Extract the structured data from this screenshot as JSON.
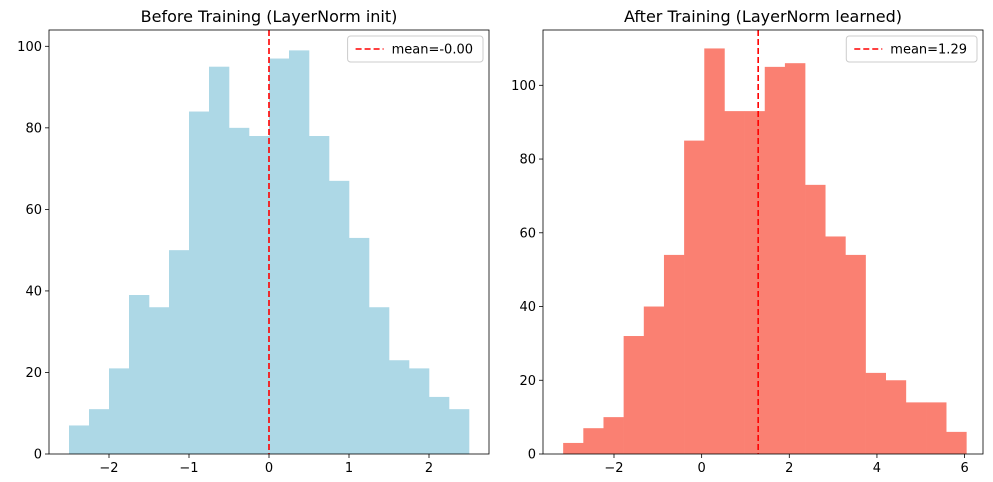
{
  "chart_data": [
    {
      "type": "histogram",
      "title": "Before Training (LayerNorm init)",
      "xlabel": "",
      "ylabel": "",
      "bar_color": "#add8e6",
      "xlim": [
        -2.75,
        2.75
      ],
      "ylim": [
        0,
        104
      ],
      "x_ticks": [
        -2,
        -1,
        0,
        1,
        2
      ],
      "x_tick_labels": [
        "−2",
        "−1",
        "0",
        "1",
        "2"
      ],
      "y_ticks": [
        0,
        20,
        40,
        60,
        80,
        100
      ],
      "y_tick_labels": [
        "0",
        "20",
        "40",
        "60",
        "80",
        "100"
      ],
      "bin_edges": [
        -2.5,
        -2.25,
        -2.0,
        -1.75,
        -1.5,
        -1.25,
        -1.0,
        -0.75,
        -0.5,
        -0.25,
        0.0,
        0.25,
        0.5,
        0.75,
        1.0,
        1.25,
        1.5,
        1.75,
        2.0,
        2.25,
        2.5
      ],
      "counts": [
        7,
        11,
        21,
        39,
        36,
        50,
        84,
        95,
        80,
        78,
        97,
        99,
        78,
        67,
        53,
        36,
        23,
        21,
        14,
        11
      ],
      "mean_line": {
        "value": 0.0,
        "color": "#ff0000",
        "style": "dashed"
      },
      "legend": {
        "label": "mean=-0.00",
        "position": "upper right"
      }
    },
    {
      "type": "histogram",
      "title": "After Training (LayerNorm learned)",
      "xlabel": "",
      "ylabel": "",
      "bar_color": "#fa8072",
      "xlim": [
        -3.62,
        6.42
      ],
      "ylim": [
        0,
        115
      ],
      "x_ticks": [
        -2,
        0,
        2,
        4,
        6
      ],
      "x_tick_labels": [
        "−2",
        "0",
        "2",
        "4",
        "6"
      ],
      "y_ticks": [
        0,
        20,
        40,
        60,
        80,
        100
      ],
      "y_tick_labels": [
        "0",
        "20",
        "40",
        "60",
        "80",
        "100"
      ],
      "bin_edges": [
        -3.16,
        -2.7,
        -2.24,
        -1.78,
        -1.32,
        -0.86,
        -0.4,
        0.06,
        0.52,
        0.98,
        1.44,
        1.9,
        2.36,
        2.82,
        3.28,
        3.74,
        4.2,
        4.66,
        5.12,
        5.58,
        6.04
      ],
      "counts": [
        3,
        7,
        10,
        32,
        40,
        54,
        85,
        110,
        93,
        93,
        105,
        106,
        73,
        59,
        54,
        22,
        20,
        14,
        14,
        6
      ],
      "mean_line": {
        "value": 1.29,
        "color": "#ff0000",
        "style": "dashed"
      },
      "legend": {
        "label": "mean=1.29",
        "position": "upper right"
      }
    }
  ]
}
